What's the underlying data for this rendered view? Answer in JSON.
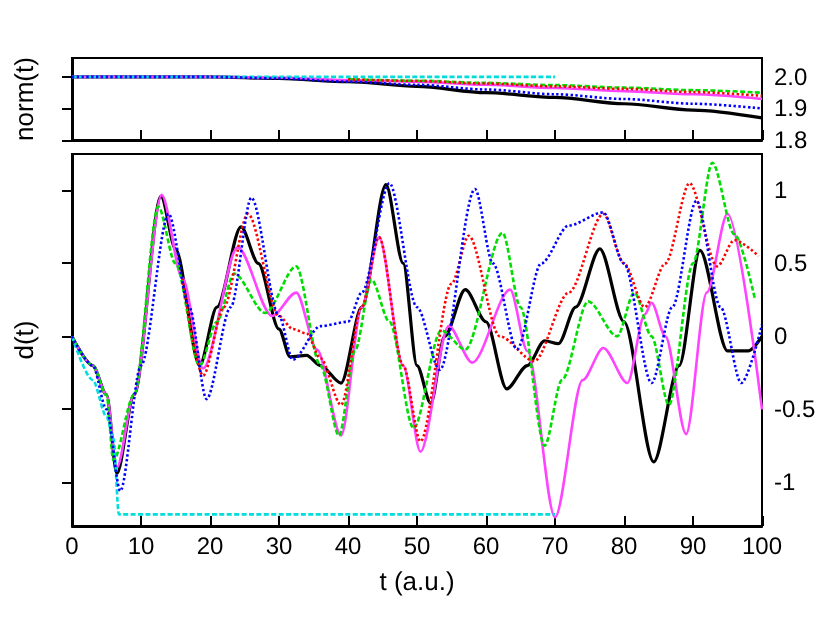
{
  "chart_data": [
    {
      "type": "line",
      "ylabel": "norm(t)",
      "xlim": [
        0,
        100
      ],
      "xticks": [
        {
          "value": 0,
          "label": null
        },
        {
          "value": 10,
          "label": null
        },
        {
          "value": 20,
          "label": null
        },
        {
          "value": 30,
          "label": null
        },
        {
          "value": 40,
          "label": null
        },
        {
          "value": 50,
          "label": null
        },
        {
          "value": 60,
          "label": null
        },
        {
          "value": 70,
          "label": null
        },
        {
          "value": 80,
          "label": null
        },
        {
          "value": 90,
          "label": null
        },
        {
          "value": 100,
          "label": null
        }
      ],
      "ylim": [
        1.8,
        2.06
      ],
      "yticks": [
        1.8,
        1.9,
        {
          "value": 2.0,
          "label": "2.0"
        }
      ],
      "tick_labels": "y",
      "grid": false,
      "series": [
        {
          "color": "#000000",
          "line_style": "solid",
          "x": [
            0,
            20,
            30,
            40,
            50,
            60,
            70,
            80,
            90,
            100
          ],
          "values": [
            2.0,
            2.0,
            1.995,
            1.985,
            1.97,
            1.95,
            1.935,
            1.915,
            1.895,
            1.87
          ]
        },
        {
          "color": "#ff0000",
          "line_style": "dotted",
          "x": [
            40,
            50,
            60,
            70,
            80,
            90,
            100
          ],
          "values": [
            1.992,
            1.987,
            1.979,
            1.97,
            1.962,
            1.952,
            1.94
          ]
        },
        {
          "color": "#00dd00",
          "line_style": "dashed",
          "x": [
            40,
            50,
            60,
            70,
            80,
            90,
            100
          ],
          "values": [
            1.993,
            1.988,
            1.981,
            1.974,
            1.966,
            1.958,
            1.95
          ]
        },
        {
          "color": "#0000ff",
          "line_style": "dotted",
          "x": [
            0,
            20,
            30,
            40,
            50,
            60,
            70,
            80,
            90,
            100
          ],
          "values": [
            2.0,
            2.0,
            1.995,
            1.985,
            1.975,
            1.96,
            1.945,
            1.93,
            1.915,
            1.9
          ]
        },
        {
          "color": "#ff44ff",
          "line_style": "solid",
          "x": [
            0,
            20,
            30,
            40,
            50,
            60,
            70,
            80,
            90,
            100
          ],
          "values": [
            2.0,
            2.0,
            1.998,
            1.99,
            1.985,
            1.975,
            1.965,
            1.955,
            1.945,
            1.93
          ]
        },
        {
          "color": "#00dddd",
          "line_style": "dashed",
          "x": [
            0,
            20,
            40,
            70
          ],
          "values": [
            2.0,
            2.0,
            2.0,
            2.0
          ]
        }
      ]
    },
    {
      "type": "line",
      "xlabel": "t (a.u.)",
      "ylabel": "d(t)",
      "xlim": [
        0,
        100
      ],
      "xticks": [
        0,
        10,
        20,
        30,
        40,
        50,
        60,
        70,
        80,
        90,
        100
      ],
      "ylim": [
        -1.3,
        1.25
      ],
      "yticks": [
        -1,
        -0.5,
        0,
        0.5,
        1
      ],
      "grid": false,
      "series": [
        {
          "color": "#000000",
          "line_style": "solid",
          "x": [
            0,
            3,
            5,
            6.5,
            9,
            12.9,
            15,
            18.5,
            21,
            24.5,
            27,
            30,
            31.6,
            34,
            36,
            39,
            42,
            45.5,
            48,
            50,
            52,
            54,
            57,
            60,
            63,
            66,
            68.5,
            70.5,
            73,
            76.5,
            80,
            84.3,
            88,
            91,
            95,
            98,
            100
          ],
          "values": [
            0,
            -0.2,
            -0.4,
            -0.94,
            -0.4,
            0.96,
            0.6,
            -0.2,
            0.2,
            0.75,
            0.5,
            0.05,
            -0.14,
            -0.13,
            -0.2,
            -0.32,
            0.2,
            1.04,
            0.5,
            -0.2,
            -0.46,
            0,
            0.32,
            0.1,
            -0.36,
            -0.2,
            -0.03,
            -0.05,
            0.2,
            0.6,
            0.1,
            -0.86,
            -0.2,
            0.59,
            -0.1,
            -0.1,
            0
          ]
        },
        {
          "color": "#ff0000",
          "line_style": "dotted",
          "x": [
            16,
            19,
            22,
            25.5,
            30,
            32,
            34,
            36,
            39,
            42,
            44.5,
            48,
            50.5,
            55,
            57.5,
            62,
            67,
            72,
            77,
            80,
            83,
            86,
            89.5,
            93.5,
            96,
            99.5
          ],
          "values": [
            0.4,
            -0.27,
            0.2,
            0.84,
            0.14,
            0.05,
            0.02,
            -0.15,
            -0.47,
            0.2,
            0.68,
            -0.2,
            -0.72,
            0.36,
            0.69,
            0,
            -0.17,
            0.3,
            0.84,
            0.5,
            0.2,
            0.5,
            1.05,
            0.48,
            0.66,
            0.55
          ]
        },
        {
          "color": "#00dd00",
          "line_style": "dashed",
          "x": [
            0,
            3,
            5,
            6,
            9,
            12.5,
            15,
            18.5,
            21,
            23.5,
            28,
            32.5,
            36,
            38.7,
            41,
            43.4,
            46,
            49.5,
            53.5,
            57,
            62.4,
            65,
            68.5,
            71,
            74.8,
            79,
            81.5,
            84,
            86.5,
            90,
            92.8,
            96,
            99
          ],
          "values": [
            0,
            -0.2,
            -0.4,
            -0.85,
            -0.4,
            0.89,
            0.5,
            -0.2,
            0.1,
            0.43,
            0.16,
            0.48,
            -0.2,
            -0.68,
            -0.1,
            0.39,
            0.1,
            -0.63,
            0.04,
            -0.09,
            0.71,
            0.2,
            -0.75,
            -0.3,
            0.24,
            0,
            0.3,
            0,
            -0.47,
            0.5,
            1.19,
            0.7,
            0.25
          ]
        },
        {
          "color": "#0000ff",
          "line_style": "dotted",
          "x": [
            0,
            3,
            5,
            7,
            10,
            14,
            17,
            19.5,
            23,
            26,
            30,
            32,
            36,
            40,
            42,
            46,
            50,
            53.3,
            58.4,
            61,
            64.5,
            68,
            72,
            77,
            80,
            84,
            87,
            90.5,
            94,
            97,
            100
          ],
          "values": [
            0,
            -0.2,
            -0.5,
            -1.06,
            -0.2,
            0.84,
            0.2,
            -0.43,
            0.2,
            0.95,
            0.14,
            -0.16,
            0.07,
            0.1,
            0.3,
            1.05,
            0.2,
            -0.23,
            1.01,
            0.5,
            -0.09,
            0.5,
            0.76,
            0.85,
            0.5,
            -0.32,
            0.2,
            0.93,
            0.2,
            -0.32,
            0.08
          ]
        },
        {
          "color": "#ff44ff",
          "line_style": "solid",
          "x": [
            0,
            3,
            5,
            6.5,
            9,
            13,
            16,
            19,
            24,
            29,
            32.5,
            35.5,
            39,
            42,
            44.5,
            48,
            50.5,
            54.6,
            58,
            63.5,
            66,
            70,
            74,
            77,
            80.5,
            83,
            84,
            86,
            89,
            92,
            95,
            100
          ],
          "values": [
            0,
            -0.2,
            -0.4,
            -0.9,
            -0.4,
            0.97,
            0.4,
            -0.22,
            0.61,
            0.14,
            0.3,
            -0.09,
            -0.68,
            0.2,
            0.68,
            -0.2,
            -0.79,
            0.07,
            -0.18,
            0.32,
            -0.1,
            -1.24,
            -0.3,
            -0.08,
            -0.32,
            0.15,
            0.23,
            0,
            -0.67,
            0.3,
            0.84,
            -0.5
          ]
        },
        {
          "color": "#00dddd",
          "line_style": "dashed",
          "x": [
            0,
            3,
            5,
            6,
            6.8,
            70
          ],
          "values": [
            0,
            -0.3,
            -0.55,
            -0.7,
            -1.22,
            -1.22
          ]
        }
      ]
    }
  ]
}
